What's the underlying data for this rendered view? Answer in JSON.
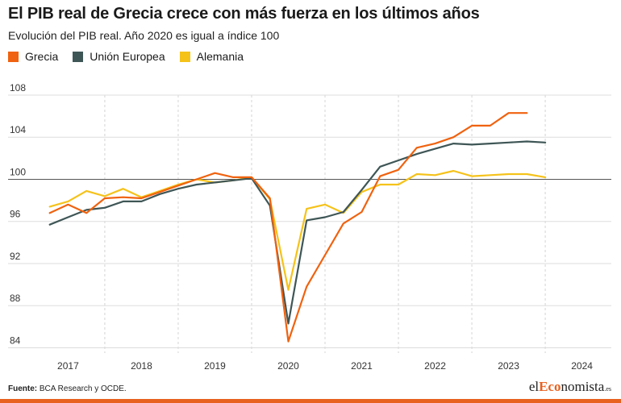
{
  "header": {
    "title": "El PIB real de Grecia crece con más fuerza en los últimos años",
    "subtitle": "Evolución del PIB real. Año 2020 es igual a índice 100"
  },
  "footer": {
    "source_label": "Fuente:",
    "source_text": "BCA Research y OCDE.",
    "logo_prefix": "el",
    "logo_accent": "Eco",
    "logo_rest": "nomista",
    "logo_tld": ".es"
  },
  "colors": {
    "grecia": "#f0620f",
    "union_europea": "#3f5656",
    "alemania": "#f5c21a",
    "brand": "#e8611f"
  },
  "chart_data": {
    "type": "line",
    "title": "El PIB real de Grecia crece con más fuerza en los últimos años",
    "subtitle": "Evolución del PIB real. Año 2020 es igual a índice 100",
    "xlabel": "",
    "ylabel": "",
    "x_ticks": [
      "2017",
      "2018",
      "2019",
      "2020",
      "2021",
      "2022",
      "2023",
      "2024"
    ],
    "y_ticks": [
      84,
      88,
      92,
      96,
      100,
      104,
      108
    ],
    "ylim": [
      83.5,
      108
    ],
    "xlim": [
      2016.6,
      2024.4
    ],
    "grid": "vertical dashed at year boundaries, horizontal at y ticks",
    "legend_position": "top-left",
    "series": [
      {
        "name": "Grecia",
        "color_key": "grecia",
        "points": [
          [
            2016.75,
            96.8
          ],
          [
            2017.0,
            97.6
          ],
          [
            2017.25,
            96.8
          ],
          [
            2017.5,
            98.2
          ],
          [
            2017.75,
            98.3
          ],
          [
            2018.0,
            98.2
          ],
          [
            2018.25,
            98.8
          ],
          [
            2018.5,
            99.4
          ],
          [
            2018.75,
            100.0
          ],
          [
            2019.0,
            100.6
          ],
          [
            2019.25,
            100.2
          ],
          [
            2019.5,
            100.2
          ],
          [
            2019.75,
            98.2
          ],
          [
            2020.0,
            84.6
          ],
          [
            2020.25,
            89.8
          ],
          [
            2020.5,
            92.8
          ],
          [
            2020.75,
            95.8
          ],
          [
            2021.0,
            96.9
          ],
          [
            2021.25,
            100.3
          ],
          [
            2021.5,
            100.9
          ],
          [
            2021.75,
            103.0
          ],
          [
            2022.0,
            103.4
          ],
          [
            2022.25,
            104.0
          ],
          [
            2022.5,
            105.1
          ],
          [
            2022.75,
            105.1
          ],
          [
            2023.0,
            106.3
          ],
          [
            2023.25,
            106.3
          ]
        ]
      },
      {
        "name": "Unión Europea",
        "color_key": "union_europea",
        "points": [
          [
            2016.75,
            95.7
          ],
          [
            2017.0,
            96.4
          ],
          [
            2017.25,
            97.1
          ],
          [
            2017.5,
            97.3
          ],
          [
            2017.75,
            97.9
          ],
          [
            2018.0,
            97.9
          ],
          [
            2018.25,
            98.6
          ],
          [
            2018.5,
            99.1
          ],
          [
            2018.75,
            99.5
          ],
          [
            2019.0,
            99.7
          ],
          [
            2019.25,
            99.9
          ],
          [
            2019.5,
            100.1
          ],
          [
            2019.75,
            97.5
          ],
          [
            2020.0,
            86.3
          ],
          [
            2020.25,
            96.1
          ],
          [
            2020.5,
            96.4
          ],
          [
            2020.75,
            96.9
          ],
          [
            2021.0,
            99.0
          ],
          [
            2021.25,
            101.2
          ],
          [
            2021.5,
            101.8
          ],
          [
            2021.75,
            102.4
          ],
          [
            2022.0,
            102.9
          ],
          [
            2022.25,
            103.4
          ],
          [
            2022.5,
            103.3
          ],
          [
            2022.75,
            103.4
          ],
          [
            2023.0,
            103.5
          ],
          [
            2023.25,
            103.6
          ],
          [
            2023.5,
            103.5
          ]
        ]
      },
      {
        "name": "Alemania",
        "color_key": "alemania",
        "points": [
          [
            2016.75,
            97.4
          ],
          [
            2017.0,
            97.9
          ],
          [
            2017.25,
            98.9
          ],
          [
            2017.5,
            98.4
          ],
          [
            2017.75,
            99.1
          ],
          [
            2018.0,
            98.3
          ],
          [
            2018.25,
            98.9
          ],
          [
            2018.5,
            99.5
          ],
          [
            2018.75,
            100.0
          ],
          [
            2019.0,
            99.7
          ],
          [
            2019.25,
            99.9
          ],
          [
            2019.5,
            100.2
          ],
          [
            2019.75,
            98.1
          ],
          [
            2020.0,
            89.5
          ],
          [
            2020.25,
            97.2
          ],
          [
            2020.5,
            97.6
          ],
          [
            2020.75,
            96.8
          ],
          [
            2021.0,
            98.8
          ],
          [
            2021.25,
            99.5
          ],
          [
            2021.5,
            99.5
          ],
          [
            2021.75,
            100.5
          ],
          [
            2022.0,
            100.4
          ],
          [
            2022.25,
            100.8
          ],
          [
            2022.5,
            100.3
          ],
          [
            2022.75,
            100.4
          ],
          [
            2023.0,
            100.5
          ],
          [
            2023.25,
            100.5
          ],
          [
            2023.5,
            100.2
          ]
        ]
      }
    ]
  }
}
